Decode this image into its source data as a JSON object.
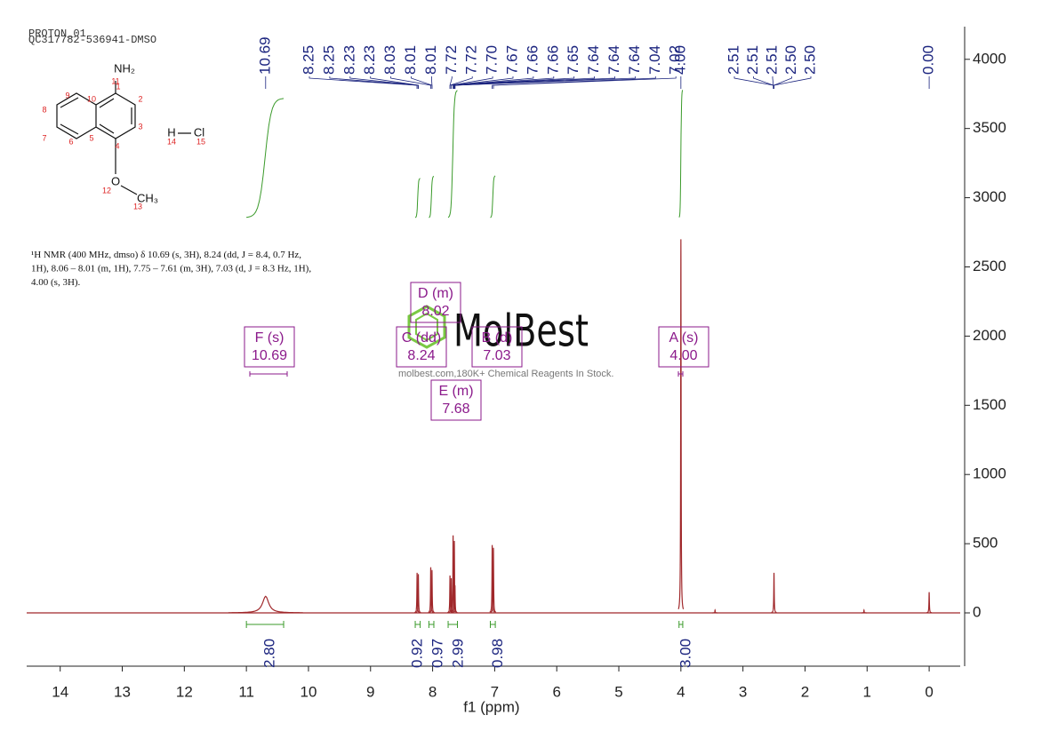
{
  "header": {
    "experiment": "PROTON_01",
    "sample": "QC317782-536941-DMSO"
  },
  "structure": {
    "labels": [
      "NH₂",
      "O",
      "CH₃",
      "H",
      "Cl"
    ],
    "numbers": [
      "1",
      "2",
      "3",
      "4",
      "5",
      "6",
      "7",
      "8",
      "9",
      "10",
      "11",
      "12",
      "13",
      "14",
      "15"
    ]
  },
  "description": [
    "¹H NMR (400 MHz, dmso) δ 10.69 (s, 3H), 8.24 (dd, J = 8.4, 0.7 Hz,",
    "1H), 8.06 – 8.01 (m, 1H), 7.75 – 7.61 (m, 3H), 7.03 (d, J = 8.3 Hz, 1H),",
    "4.00 (s, 3H)."
  ],
  "watermark": {
    "brand": "MolBest",
    "tagline": "molbest.com,180K+ Chemical Reagents In Stock."
  },
  "chart_data": {
    "type": "nmr",
    "xlabel": "f1 (ppm)",
    "color": "#a0282b",
    "xlim": [
      14.54,
      -0.5
    ],
    "xticks": [
      14,
      13,
      12,
      11,
      10,
      9,
      8,
      7,
      6,
      5,
      4,
      3,
      2,
      1,
      0
    ],
    "ylim": [
      -385,
      4236
    ],
    "yticks": [
      0,
      500,
      1000,
      1500,
      2000,
      2500,
      3000,
      3500,
      4000
    ],
    "x": [
      10.69,
      8.25,
      8.23,
      8.03,
      8.01,
      7.72,
      7.7,
      7.67,
      7.65,
      7.64,
      7.04,
      7.02,
      4.0,
      3.45,
      2.5,
      1.05,
      0.0
    ],
    "values": [
      120,
      290,
      280,
      330,
      310,
      270,
      250,
      560,
      520,
      200,
      490,
      470,
      2700,
      20,
      290,
      20,
      150
    ],
    "peak_labels": [
      {
        "value": 10.69,
        "label": "10.69"
      },
      {
        "value": 8.25,
        "label": "8.25"
      },
      {
        "value": 8.25,
        "label": "8.25"
      },
      {
        "value": 8.23,
        "label": "8.23"
      },
      {
        "value": 8.23,
        "label": "8.23"
      },
      {
        "value": 8.03,
        "label": "8.03"
      },
      {
        "value": 8.01,
        "label": "8.01"
      },
      {
        "value": 8.01,
        "label": "8.01"
      },
      {
        "value": 7.72,
        "label": "7.72"
      },
      {
        "value": 7.72,
        "label": "7.72"
      },
      {
        "value": 7.7,
        "label": "7.70"
      },
      {
        "value": 7.67,
        "label": "7.67"
      },
      {
        "value": 7.66,
        "label": "7.66"
      },
      {
        "value": 7.66,
        "label": "7.66"
      },
      {
        "value": 7.65,
        "label": "7.65"
      },
      {
        "value": 7.64,
        "label": "7.64"
      },
      {
        "value": 7.64,
        "label": "7.64"
      },
      {
        "value": 7.64,
        "label": "7.64"
      },
      {
        "value": 7.04,
        "label": "7.04"
      },
      {
        "value": 7.02,
        "label": "7.02"
      },
      {
        "value": 4.0,
        "label": "4.00"
      },
      {
        "value": 2.51,
        "label": "2.51"
      },
      {
        "value": 2.51,
        "label": "2.51"
      },
      {
        "value": 2.51,
        "label": "2.51"
      },
      {
        "value": 2.5,
        "label": "2.50"
      },
      {
        "value": 2.5,
        "label": "2.50"
      },
      {
        "value": 0.0,
        "label": "0.00"
      }
    ],
    "integrals": [
      {
        "value": 2.8,
        "label": "2.80",
        "from": 11.0,
        "to": 10.4
      },
      {
        "value": 0.92,
        "label": "0.92",
        "from": 8.28,
        "to": 8.2
      },
      {
        "value": 0.97,
        "label": "0.97",
        "from": 8.06,
        "to": 7.98
      },
      {
        "value": 2.99,
        "label": "2.99",
        "from": 7.75,
        "to": 7.6
      },
      {
        "value": 0.98,
        "label": "0.98",
        "from": 7.07,
        "to": 6.99
      },
      {
        "value": 3.0,
        "label": "3.00",
        "from": 4.03,
        "to": 3.97
      }
    ],
    "multiplets": [
      {
        "label": "F (s)",
        "shift": "10.69"
      },
      {
        "label": "C (dd)",
        "shift": "8.24"
      },
      {
        "label": "D (m)",
        "shift": "8.02"
      },
      {
        "label": "B (d)",
        "shift": "7.03"
      },
      {
        "label": "E (m)",
        "shift": "7.68"
      },
      {
        "label": "A (s)",
        "shift": "4.00"
      }
    ]
  }
}
